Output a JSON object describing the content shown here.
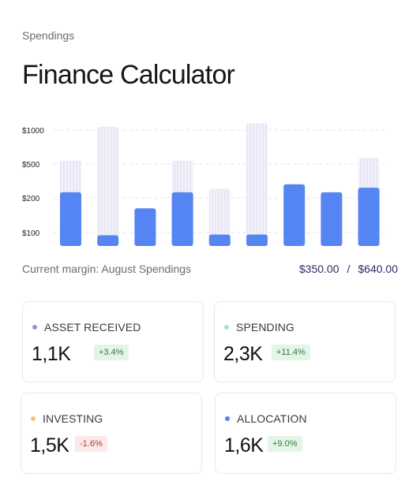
{
  "header": {
    "section": "Spendings",
    "title": "Finance Calculator"
  },
  "chart_data": {
    "type": "bar",
    "y_tick_labels": [
      "$1000",
      "$500",
      "$200",
      "$100"
    ],
    "y_levels": [
      1000,
      500,
      200,
      100
    ],
    "grid": true,
    "series": [
      {
        "values": [
          250,
          80,
          170,
          250,
          85,
          85,
          320,
          250,
          290
        ]
      },
      {
        "values": [
          550,
          1050,
          170,
          550,
          280,
          1100,
          320,
          250,
          590
        ]
      }
    ],
    "colors": {
      "solid": "#5585f2",
      "ghost_fill": "#f3f2fb",
      "ghost_line": "#dcd9ef",
      "grid": "#e6e6ec",
      "tick": "#222"
    }
  },
  "summary": {
    "label": "Current margin: August Spendings",
    "current": "$350.00",
    "separator": "/",
    "total": "$640.00"
  },
  "cards": [
    {
      "label": "ASSET RECEIVED",
      "value": "1,1K",
      "change": "+3.4%",
      "trend": "pos",
      "dot": "#9b8ce8"
    },
    {
      "label": "SPENDING",
      "value": "2,3K",
      "change": "+11.4%",
      "trend": "pos",
      "dot": "#9fe0d6"
    },
    {
      "label": "INVESTING",
      "value": "1,5K",
      "change": "-1.6%",
      "trend": "neg",
      "dot": "#f3c27a"
    },
    {
      "label": "ALLOCATION",
      "value": "1,6K",
      "change": "+9.0%",
      "trend": "pos",
      "dot": "#5b7df2"
    }
  ]
}
